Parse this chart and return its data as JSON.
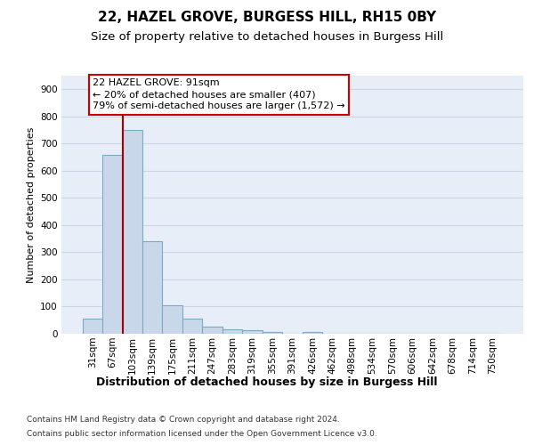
{
  "title1": "22, HAZEL GROVE, BURGESS HILL, RH15 0BY",
  "title2": "Size of property relative to detached houses in Burgess Hill",
  "xlabel": "Distribution of detached houses by size in Burgess Hill",
  "ylabel": "Number of detached properties",
  "footnote1": "Contains HM Land Registry data © Crown copyright and database right 2024.",
  "footnote2": "Contains public sector information licensed under the Open Government Licence v3.0.",
  "bin_labels": [
    "31sqm",
    "67sqm",
    "103sqm",
    "139sqm",
    "175sqm",
    "211sqm",
    "247sqm",
    "283sqm",
    "319sqm",
    "355sqm",
    "391sqm",
    "426sqm",
    "462sqm",
    "498sqm",
    "534sqm",
    "570sqm",
    "606sqm",
    "642sqm",
    "678sqm",
    "714sqm",
    "750sqm"
  ],
  "bar_values": [
    55,
    660,
    750,
    340,
    105,
    55,
    25,
    15,
    12,
    8,
    0,
    8,
    0,
    0,
    0,
    0,
    0,
    0,
    0,
    0,
    0
  ],
  "bar_color": "#c8d8ea",
  "bar_edge_color": "#7aaac8",
  "vline_x_index": 1.5,
  "property_line_label": "22 HAZEL GROVE: 91sqm",
  "annotation_line1": "← 20% of detached houses are smaller (407)",
  "annotation_line2": "79% of semi-detached houses are larger (1,572) →",
  "vline_color": "#aa0000",
  "annotation_box_edge": "#cc0000",
  "ylim_max": 950,
  "yticks": [
    0,
    100,
    200,
    300,
    400,
    500,
    600,
    700,
    800,
    900
  ],
  "grid_color": "#ccd5e5",
  "bg_color": "#e8eef8",
  "title1_fontsize": 11,
  "title2_fontsize": 9.5,
  "xlabel_fontsize": 9,
  "ylabel_fontsize": 8,
  "tick_fontsize": 7.5,
  "annot_fontsize": 8,
  "footnote_fontsize": 6.5
}
